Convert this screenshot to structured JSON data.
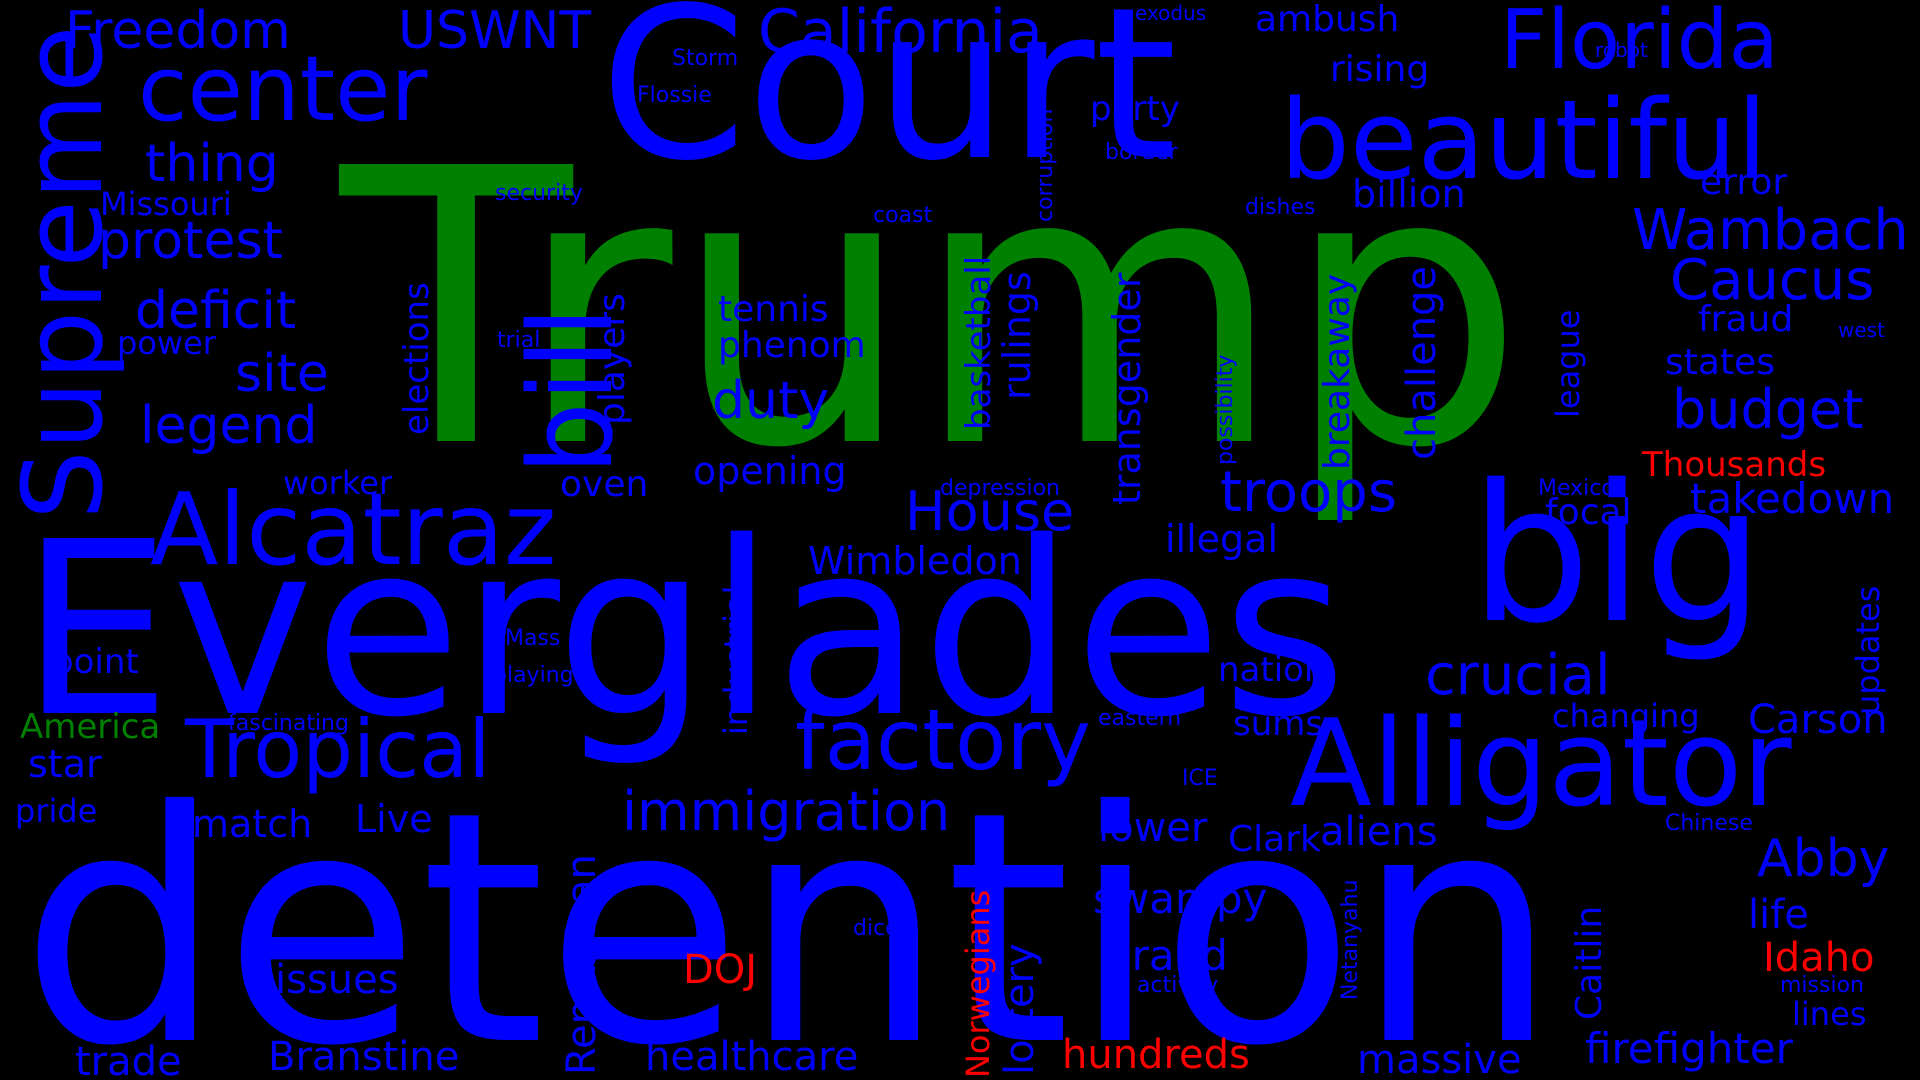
{
  "colors": {
    "background": "#000000",
    "blue": "#0000ff",
    "green": "#008000",
    "red": "#ff0000"
  },
  "words": [
    "Trump",
    "detention",
    "Everglades",
    "Court",
    "big",
    "Alligator",
    "Alcatraz",
    "beautiful",
    "Supreme",
    "bill",
    "center",
    "Florida",
    "factory",
    "Tropical",
    "California",
    "crucial",
    "Caucus",
    "Wambach",
    "troops",
    "budget",
    "immigration",
    "House",
    "Freedom",
    "USWNT",
    "protest",
    "deficit",
    "thing",
    "legend",
    "site",
    "duty",
    "takedown",
    "Abby",
    "firefighter",
    "massive",
    "healthcare",
    "Branstine",
    "trade",
    "issues",
    "grand",
    "swampy",
    "lower",
    "aliens",
    "Clark",
    "Carson",
    "life",
    "lines",
    "Idaho",
    "hundreds",
    "DOJ",
    "Thousands",
    "Norwegians",
    "America",
    "star",
    "pride",
    "point",
    "match",
    "Live",
    "Republican",
    "lottery",
    "Caitlin",
    "updates",
    "elections",
    "players",
    "rulings",
    "basketball",
    "transgender",
    "challenge",
    "breakaway",
    "league",
    "industrial",
    "possibility",
    "corruption",
    "Netanyahu",
    "ambush",
    "rising",
    "billion",
    "error",
    "fraud",
    "states",
    "focal",
    "illegal",
    "Wimbledon",
    "opening",
    "oven",
    "worker",
    "power",
    "Missouri",
    "tennis",
    "phenom",
    "nation",
    "sums",
    "changing",
    "depression",
    "party",
    "security",
    "coast",
    "dishes",
    "border",
    "robot",
    "exodus",
    "Storm",
    "Flossie",
    "trial",
    "west",
    "Mexico",
    "eastern",
    "fascinating",
    "ICE",
    "Chinese",
    "Mass",
    "playing",
    "dice",
    "activity",
    "mission"
  ]
}
